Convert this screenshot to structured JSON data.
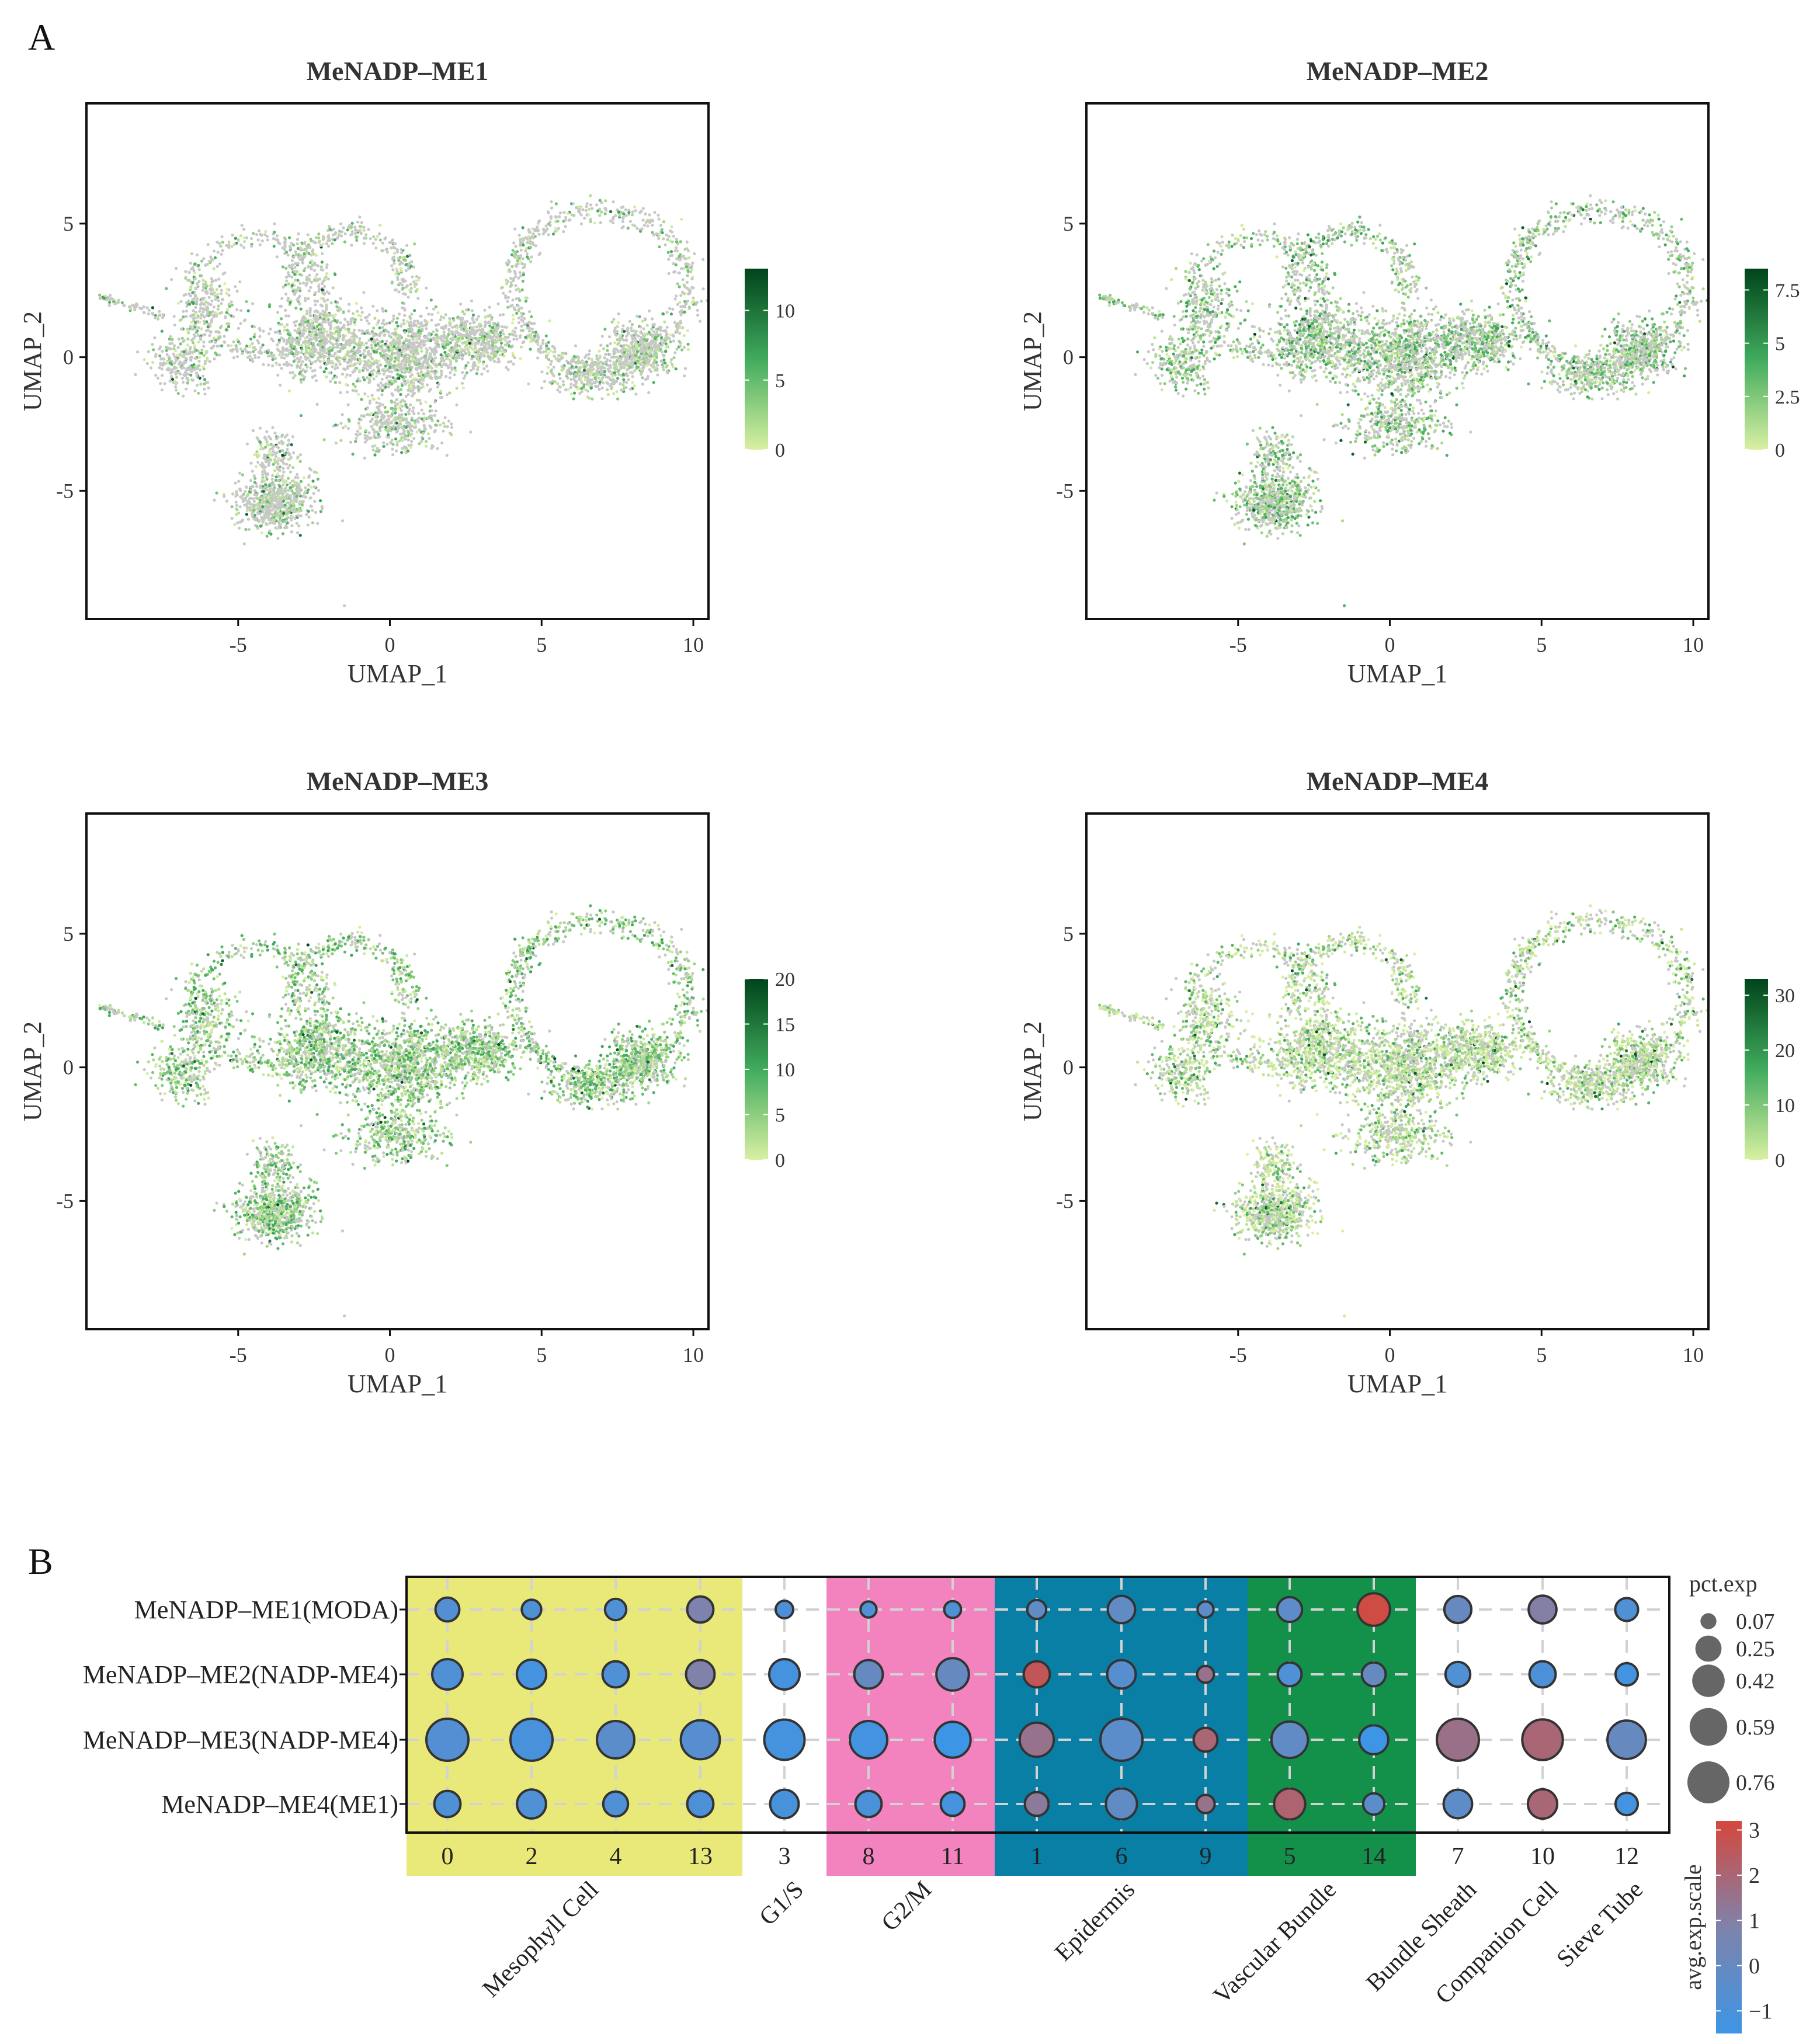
{
  "colors": {
    "gray_cell": "#c8c8c8",
    "green_low": "#d9f0a3",
    "green_mid": "#41ab5d",
    "green_high": "#00441b",
    "dot_low": "#3d95e6",
    "dot_mid": "#7e83ab",
    "dot_high": "#d6473c",
    "band_yellow": "#e9e97a",
    "band_pink": "#f283be",
    "band_blue": "#0a7fa6",
    "band_green": "#13914b"
  },
  "figure": {
    "panel_a_label": "A",
    "panel_b_label": "B"
  },
  "chart_data": [
    {
      "type": "scatter",
      "title": "MeNADP–ME1",
      "xlabel": "UMAP_1",
      "ylabel": "UMAP_2",
      "xlim": [
        -10,
        10.5
      ],
      "ylim": [
        -9.8,
        9.5
      ],
      "xticks": [
        -5,
        0,
        5,
        10
      ],
      "yticks": [
        5,
        0,
        -5
      ],
      "colorbar": {
        "min": 0,
        "max": 13,
        "ticks": [
          0,
          5,
          10
        ]
      }
    },
    {
      "type": "scatter",
      "title": "MeNADP–ME2",
      "xlabel": "UMAP_1",
      "ylabel": "UMAP_2",
      "xlim": [
        -10,
        10.5
      ],
      "ylim": [
        -9.8,
        9.5
      ],
      "xticks": [
        -5,
        0,
        5,
        10
      ],
      "yticks": [
        5,
        0,
        -5
      ],
      "colorbar": {
        "min": 0,
        "max": 8.5,
        "ticks": [
          0,
          2.5,
          5,
          7.5
        ]
      }
    },
    {
      "type": "scatter",
      "title": "MeNADP–ME3",
      "xlabel": "UMAP_1",
      "ylabel": "UMAP_2",
      "xlim": [
        -10,
        10.5
      ],
      "ylim": [
        -9.8,
        9.5
      ],
      "xticks": [
        -5,
        0,
        5,
        10
      ],
      "yticks": [
        5,
        0,
        -5
      ],
      "colorbar": {
        "min": 0,
        "max": 20,
        "ticks": [
          0,
          5,
          10,
          15,
          20
        ]
      }
    },
    {
      "type": "scatter",
      "title": "MeNADP–ME4",
      "xlabel": "UMAP_1",
      "ylabel": "UMAP_2",
      "xlim": [
        -10,
        10.5
      ],
      "ylim": [
        -9.8,
        9.5
      ],
      "xticks": [
        -5,
        0,
        5,
        10
      ],
      "yticks": [
        5,
        0,
        -5
      ],
      "colorbar": {
        "min": 0,
        "max": 33,
        "ticks": [
          0,
          10,
          20,
          30
        ]
      }
    },
    {
      "type": "scatter",
      "subtype": "dotplot",
      "rows": [
        "MeNADP–ME1(MODA)",
        "MeNADP–ME2(NADP-ME4)",
        "MeNADP–ME3(NADP-ME4)",
        "MeNADP–ME4(ME1)"
      ],
      "columns": [
        "0",
        "2",
        "4",
        "13",
        "3",
        "8",
        "11",
        "1",
        "6",
        "9",
        "5",
        "14",
        "7",
        "10",
        "12"
      ],
      "groups": [
        {
          "name": "Mesophyll Cell",
          "columns": [
            "0",
            "2",
            "4",
            "13"
          ],
          "band": "yellow"
        },
        {
          "name": "G1/S",
          "columns": [
            "3"
          ],
          "band": "none"
        },
        {
          "name": "G2/M",
          "columns": [
            "8",
            "11"
          ],
          "band": "pink"
        },
        {
          "name": "Epidermis",
          "columns": [
            "1",
            "6",
            "9"
          ],
          "band": "blue"
        },
        {
          "name": "Vascular Bundle",
          "columns": [
            "5",
            "14"
          ],
          "band": "green"
        },
        {
          "name": "Bundle Sheath",
          "columns": [
            "7"
          ],
          "band": "none"
        },
        {
          "name": "Companion Cell",
          "columns": [
            "10"
          ],
          "band": "none"
        },
        {
          "name": "Sieve Tube",
          "columns": [
            "12"
          ],
          "band": "none"
        }
      ],
      "pct_exp": [
        [
          0.2,
          0.12,
          0.15,
          0.25,
          0.09,
          0.07,
          0.08,
          0.11,
          0.28,
          0.07,
          0.22,
          0.42,
          0.27,
          0.29,
          0.18
        ],
        [
          0.36,
          0.33,
          0.25,
          0.31,
          0.36,
          0.31,
          0.42,
          0.25,
          0.31,
          0.08,
          0.2,
          0.2,
          0.22,
          0.25,
          0.17
        ],
        [
          0.76,
          0.76,
          0.58,
          0.64,
          0.69,
          0.58,
          0.53,
          0.47,
          0.76,
          0.2,
          0.55,
          0.32,
          0.76,
          0.7,
          0.62
        ],
        [
          0.25,
          0.32,
          0.22,
          0.25,
          0.31,
          0.25,
          0.2,
          0.2,
          0.38,
          0.1,
          0.38,
          0.15,
          0.31,
          0.33,
          0.17
        ]
      ],
      "avg_exp_scale": [
        [
          -0.7,
          -0.8,
          -0.8,
          0.8,
          -0.9,
          -0.8,
          -0.8,
          -0.2,
          -0.2,
          -0.3,
          -0.3,
          3.0,
          0.0,
          1.0,
          -0.8
        ],
        [
          -0.8,
          -1.2,
          -0.8,
          0.9,
          -1.2,
          0.0,
          0.0,
          2.6,
          -0.6,
          1.5,
          -0.8,
          0.0,
          -0.8,
          -0.9,
          -1.3
        ],
        [
          -0.7,
          -1.1,
          -0.4,
          -0.6,
          -1.2,
          -1.3,
          -1.5,
          1.5,
          -0.4,
          2.0,
          -0.2,
          -1.5,
          1.6,
          2.0,
          0.0
        ],
        [
          -0.8,
          -0.8,
          -0.8,
          -0.9,
          -1.1,
          -1.0,
          -1.2,
          1.2,
          -0.2,
          1.5,
          2.1,
          -0.4,
          -0.3,
          2.0,
          -1.3
        ]
      ],
      "size_legend": {
        "title": "pct.exp",
        "values": [
          0.07,
          0.25,
          0.42,
          0.59,
          0.76
        ],
        "labels": [
          "0.07",
          "0.25",
          "0.42",
          "0.59",
          "0.76"
        ]
      },
      "color_legend": {
        "title": "avg.exp.scale",
        "min": -1.5,
        "max": 3.2,
        "ticks": [
          -1,
          0,
          1,
          2,
          3
        ],
        "tick_labels": [
          "−1",
          "0",
          "1",
          "2",
          "3"
        ]
      }
    }
  ]
}
